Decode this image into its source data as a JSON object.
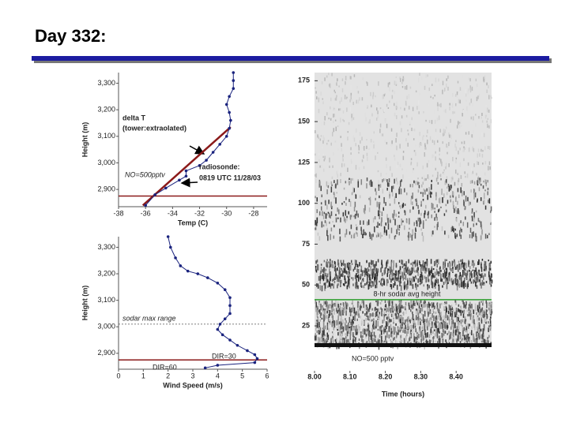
{
  "title": "Day 332:",
  "chart_data": [
    {
      "type": "line",
      "xlabel": "Temp (C)",
      "ylabel": "Height (m)",
      "xlim": [
        -38,
        -27
      ],
      "ylim": [
        2835,
        3340
      ],
      "xticks": [
        -38,
        -36,
        -34,
        -32,
        -30,
        -28
      ],
      "yticks": [
        {
          "value": 2900,
          "label": "2,900"
        },
        {
          "value": 3000,
          "label": "3,000"
        },
        {
          "value": 3100,
          "label": "3,100"
        },
        {
          "value": 3200,
          "label": "3,200"
        },
        {
          "value": 3300,
          "label": "3,300"
        }
      ],
      "series": [
        {
          "name": "radiosonde",
          "color": "#1a237e",
          "x": [
            -36,
            -35.3,
            -34.5,
            -33.5,
            -33,
            -33,
            -32,
            -31.5,
            -31,
            -30.5,
            -30,
            -29.8,
            -29.7,
            -29.8,
            -30,
            -29.8,
            -29.5,
            -29.5,
            -29.5
          ],
          "values": [
            2840,
            2880,
            2905,
            2935,
            2950,
            2970,
            2990,
            3010,
            3040,
            3070,
            3100,
            3130,
            3160,
            3190,
            3220,
            3250,
            3280,
            3310,
            3340
          ]
        }
      ],
      "trend_line": {
        "color": "#8b1a1a",
        "x": [
          -36.2,
          -29.7
        ],
        "values": [
          2840,
          3135
        ]
      },
      "reference_lines": [
        {
          "value": 2875,
          "color": "#8b1a1a"
        }
      ],
      "annotations": [
        "delta T",
        "(tower:extraolated)",
        "radiosonde:",
        "0819 UTC 11/28/03",
        "NO=500pptv"
      ]
    },
    {
      "type": "line",
      "xlabel": "Wind Speed (m/s)",
      "ylabel": "Height (m)",
      "xlim": [
        0,
        6
      ],
      "ylim": [
        2840,
        3340
      ],
      "xticks": [
        0,
        1,
        2,
        3,
        4,
        5,
        6
      ],
      "yticks": [
        {
          "value": 2900,
          "label": "2,900"
        },
        {
          "value": 3000,
          "label": "3,000"
        },
        {
          "value": 3100,
          "label": "3,100"
        },
        {
          "value": 3200,
          "label": "3,200"
        },
        {
          "value": 3300,
          "label": "3,300"
        }
      ],
      "series": [
        {
          "name": "wind speed",
          "color": "#1a237e",
          "x": [
            2,
            2.1,
            2.3,
            2.5,
            2.8,
            3.2,
            3.6,
            4,
            4.3,
            4.5,
            4.5,
            4.5,
            4.3,
            4.1,
            4,
            4.2,
            4.5,
            4.8,
            5.2,
            5.5,
            5.6,
            5.5,
            4,
            3.5
          ],
          "values": [
            3340,
            3300,
            3260,
            3230,
            3210,
            3200,
            3185,
            3165,
            3140,
            3110,
            3080,
            3050,
            3030,
            3010,
            2990,
            2970,
            2950,
            2930,
            2910,
            2895,
            2880,
            2865,
            2855,
            2845
          ]
        }
      ],
      "reference_lines": [
        {
          "value": 3010,
          "label": "sodar max range",
          "color": "#555555",
          "dashed": true
        },
        {
          "value": 2875,
          "color": "#8b1a1a"
        }
      ],
      "annotations": [
        "DIR=30",
        "DIR=60"
      ]
    },
    {
      "type": "image",
      "xlabel": "Time (hours)",
      "xlim": [
        8.0,
        8.5
      ],
      "ylim": [
        12,
        180
      ],
      "xticks": [
        {
          "value": 8.0,
          "label": "8.00"
        },
        {
          "value": 8.1,
          "label": "8.10"
        },
        {
          "value": 8.2,
          "label": "8.20"
        },
        {
          "value": 8.3,
          "label": "8.30"
        },
        {
          "value": 8.4,
          "label": "8.40"
        }
      ],
      "yticks": [
        25,
        50,
        75,
        100,
        125,
        150,
        175
      ],
      "reference_lines": [
        {
          "value": 41,
          "label": "8-hr sodar avg height",
          "color": "#2e9e2e"
        }
      ],
      "annotations": [
        "NO=500 pptv"
      ]
    }
  ]
}
